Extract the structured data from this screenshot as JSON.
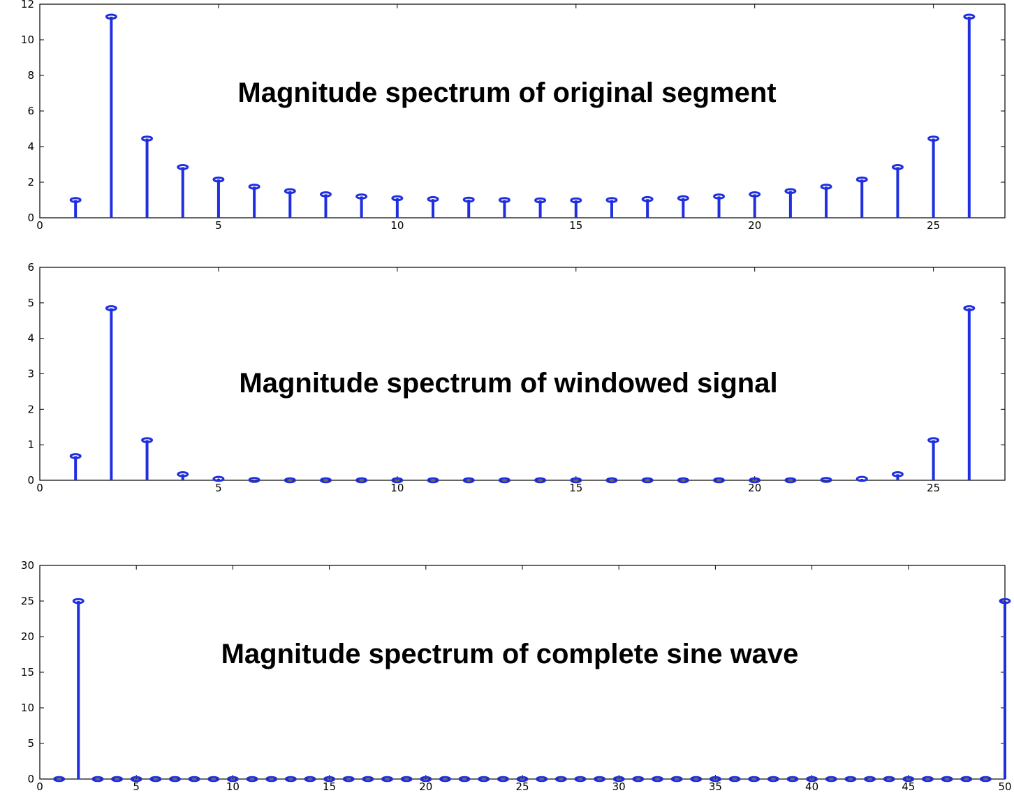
{
  "colors": {
    "stem": "#1f2fe0",
    "axes": "#000000",
    "background": "#ffffff"
  },
  "chart_data": [
    {
      "type": "stem",
      "title": "Magnitude spectrum of original segment",
      "xlabel": "",
      "ylabel": "",
      "xlim": [
        0,
        27
      ],
      "ylim": [
        0,
        12
      ],
      "xticks": [
        "0",
        "5",
        "10",
        "15",
        "20",
        "25"
      ],
      "yticks": [
        "0",
        "2",
        "4",
        "6",
        "8",
        "10",
        "12"
      ],
      "x": [
        1,
        2,
        3,
        4,
        5,
        6,
        7,
        8,
        9,
        10,
        11,
        12,
        13,
        14,
        15,
        16,
        17,
        18,
        19,
        20,
        21,
        22,
        23,
        24,
        25,
        26
      ],
      "values": [
        1.0,
        11.3,
        4.45,
        2.85,
        2.15,
        1.75,
        1.5,
        1.32,
        1.2,
        1.1,
        1.05,
        1.02,
        1.0,
        0.98,
        0.98,
        1.0,
        1.05,
        1.1,
        1.2,
        1.32,
        1.5,
        1.75,
        2.15,
        2.85,
        4.45,
        11.3
      ],
      "grid": false
    },
    {
      "type": "stem",
      "title": "Magnitude spectrum of windowed signal",
      "xlabel": "",
      "ylabel": "",
      "xlim": [
        0,
        27
      ],
      "ylim": [
        0,
        6
      ],
      "xticks": [
        "0",
        "5",
        "10",
        "15",
        "20",
        "25"
      ],
      "yticks": [
        "0",
        "1",
        "2",
        "3",
        "4",
        "5",
        "6"
      ],
      "x": [
        1,
        2,
        3,
        4,
        5,
        6,
        7,
        8,
        9,
        10,
        11,
        12,
        13,
        14,
        15,
        16,
        17,
        18,
        19,
        20,
        21,
        22,
        23,
        24,
        25,
        26
      ],
      "values": [
        0.68,
        4.85,
        1.13,
        0.17,
        0.04,
        0.01,
        0.0,
        0.0,
        0.0,
        0.0,
        0.0,
        0.0,
        0.0,
        0.0,
        0.0,
        0.0,
        0.0,
        0.0,
        0.0,
        0.0,
        0.0,
        0.01,
        0.04,
        0.17,
        1.13,
        4.85
      ],
      "grid": false
    },
    {
      "type": "stem",
      "title": "Magnitude spectrum of complete sine wave",
      "xlabel": "",
      "ylabel": "",
      "xlim": [
        0,
        50
      ],
      "ylim": [
        0,
        30
      ],
      "xticks": [
        "0",
        "5",
        "10",
        "15",
        "20",
        "25",
        "30",
        "35",
        "40",
        "45",
        "50"
      ],
      "yticks": [
        "0",
        "5",
        "10",
        "15",
        "20",
        "25",
        "30"
      ],
      "x": [
        1,
        2,
        3,
        4,
        5,
        6,
        7,
        8,
        9,
        10,
        11,
        12,
        13,
        14,
        15,
        16,
        17,
        18,
        19,
        20,
        21,
        22,
        23,
        24,
        25,
        26,
        27,
        28,
        29,
        30,
        31,
        32,
        33,
        34,
        35,
        36,
        37,
        38,
        39,
        40,
        41,
        42,
        43,
        44,
        45,
        46,
        47,
        48,
        49,
        50
      ],
      "values": [
        0,
        25,
        0,
        0,
        0,
        0,
        0,
        0,
        0,
        0,
        0,
        0,
        0,
        0,
        0,
        0,
        0,
        0,
        0,
        0,
        0,
        0,
        0,
        0,
        0,
        0,
        0,
        0,
        0,
        0,
        0,
        0,
        0,
        0,
        0,
        0,
        0,
        0,
        0,
        0,
        0,
        0,
        0,
        0,
        0,
        0,
        0,
        0,
        0,
        25
      ],
      "grid": false
    }
  ]
}
